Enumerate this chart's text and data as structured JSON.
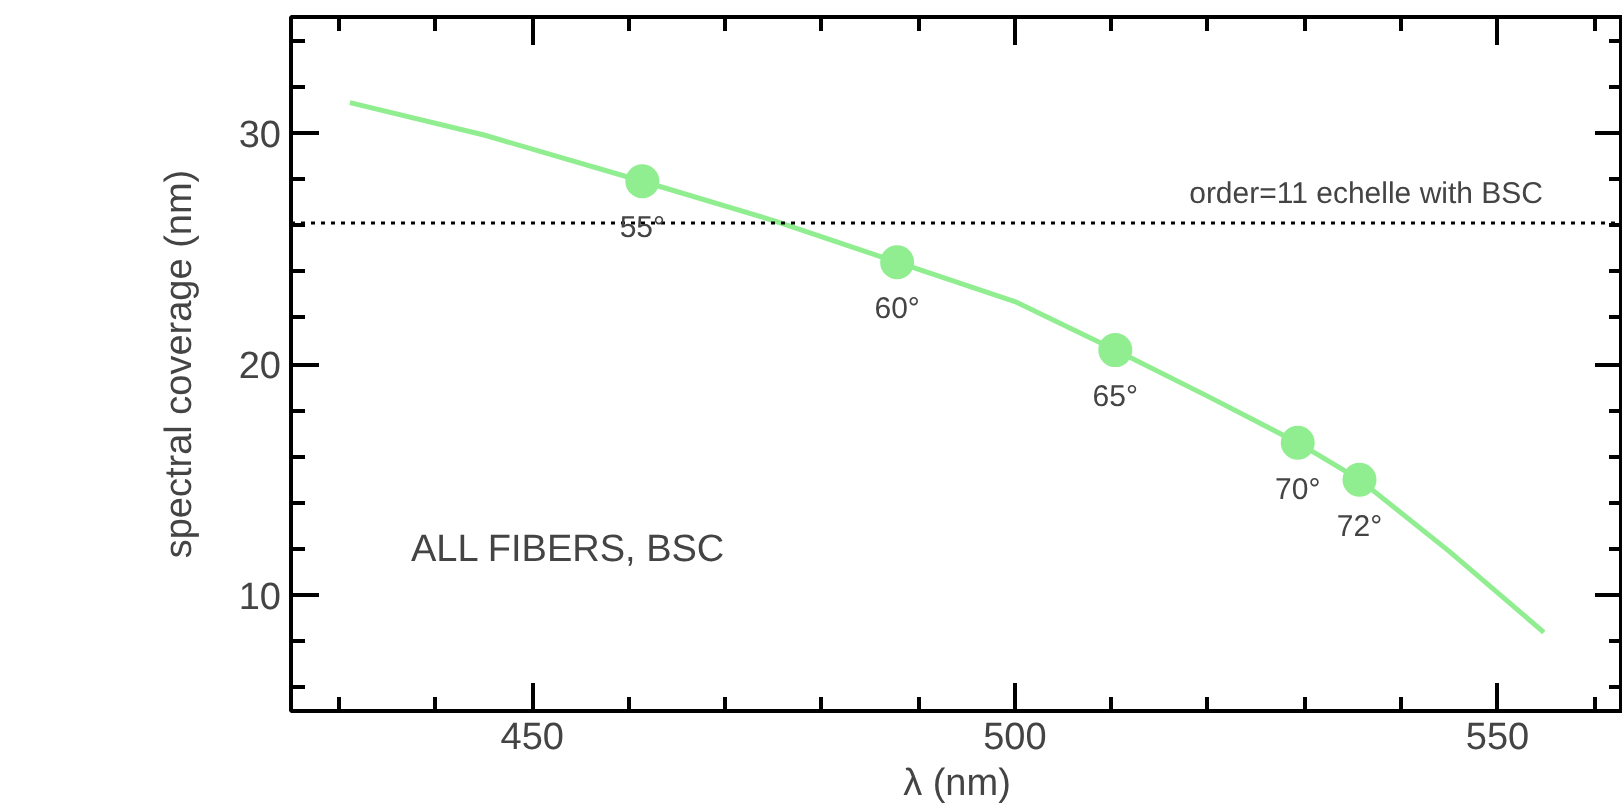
{
  "chart_data": {
    "type": "line",
    "xlabel": "λ (nm)",
    "ylabel": "spectral coverage (nm)",
    "xlim": [
      425,
      563
    ],
    "ylim": [
      5,
      35
    ],
    "xticks": [
      {
        "value": 430,
        "label": null
      },
      {
        "value": 440,
        "label": null
      },
      450,
      {
        "value": 460,
        "label": null
      },
      {
        "value": 470,
        "label": null
      },
      {
        "value": 480,
        "label": null
      },
      {
        "value": 490,
        "label": null
      },
      500,
      {
        "value": 510,
        "label": null
      },
      {
        "value": 520,
        "label": null
      },
      {
        "value": 530,
        "label": null
      },
      {
        "value": 540,
        "label": null
      },
      550,
      {
        "value": 560,
        "label": null
      }
    ],
    "yticks": [
      {
        "value": 6,
        "label": null
      },
      {
        "value": 8,
        "label": null
      },
      10,
      {
        "value": 12,
        "label": null
      },
      {
        "value": 14,
        "label": null
      },
      {
        "value": 16,
        "label": null
      },
      {
        "value": 18,
        "label": null
      },
      20,
      {
        "value": 22,
        "label": null
      },
      {
        "value": 24,
        "label": null
      },
      {
        "value": 26,
        "label": null
      },
      {
        "value": 28,
        "label": null
      },
      30,
      {
        "value": 32,
        "label": null
      },
      {
        "value": 34,
        "label": null
      }
    ],
    "series": [
      {
        "color": "#90ee90",
        "marker": "none",
        "x": [
          431.1,
          445,
          461.4,
          475,
          487.8,
          500,
          510.4,
          520,
          529.3,
          535.7,
          545,
          554.8
        ],
        "values": [
          31.3,
          29.9,
          27.9,
          26.2,
          24.4,
          22.7,
          20.6,
          18.6,
          16.6,
          15.0,
          11.9,
          8.4
        ]
      },
      {
        "type": "scatter",
        "color": "#90ee90",
        "marker": "circle",
        "x": [
          461.4,
          487.8,
          510.4,
          529.3,
          535.7
        ],
        "values": [
          27.9,
          24.4,
          20.6,
          16.6,
          15.0
        ]
      }
    ],
    "ref_lines": [
      {
        "axis": "y",
        "value": 26.1,
        "color": "#000000",
        "line_style": "dotted"
      }
    ],
    "annotations": [
      "ALL FIBERS, BSC",
      {
        "text": "order=11 echelle with BSC",
        "y": 26.1
      },
      {
        "text": "55°",
        "x": 461.4,
        "y": 27.9
      },
      {
        "text": "60°",
        "x": 487.8,
        "y": 24.4
      },
      {
        "text": "65°",
        "x": 510.4,
        "y": 20.6
      },
      {
        "text": "70°",
        "x": 529.3,
        "y": 16.6
      },
      {
        "text": "72°",
        "x": 535.7,
        "y": 15.0
      }
    ]
  }
}
